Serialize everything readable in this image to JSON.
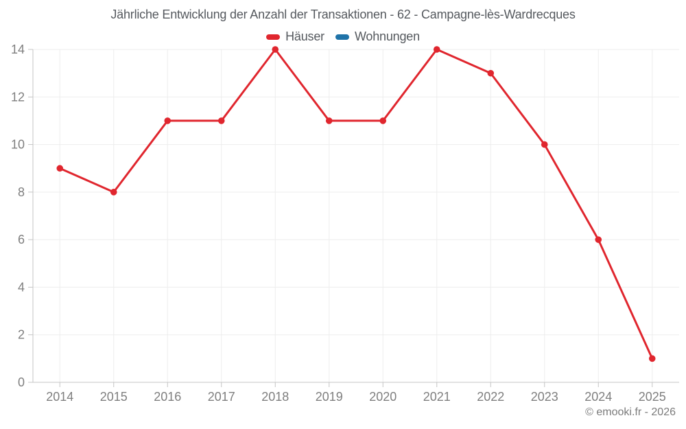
{
  "page": {
    "attribution": "© emooki.fr - 2026",
    "background": "#ffffff"
  },
  "colors": {
    "grid": "#ededed",
    "axis": "#c4c4c4",
    "tick_label": "#7e7e7e",
    "title_text": "#55595e",
    "attribution_text": "#7b7b7b"
  },
  "chart_data": {
    "type": "line",
    "title": "Jährliche Entwicklung der Anzahl der Transaktionen - 62 - Campagne-lès-Wardrecques",
    "categories": [
      "2014",
      "2015",
      "2016",
      "2017",
      "2018",
      "2019",
      "2020",
      "2021",
      "2022",
      "2023",
      "2024",
      "2025"
    ],
    "series": [
      {
        "name": "Häuser",
        "color": "#e0262e",
        "visible": true,
        "values": [
          9,
          8,
          11,
          11,
          14,
          11,
          11,
          14,
          13,
          10,
          6,
          1
        ]
      },
      {
        "name": "Wohnungen",
        "color": "#1f73a8",
        "visible": false,
        "values": []
      }
    ],
    "xlabel": "",
    "ylabel": "",
    "ylim": [
      0,
      14
    ],
    "yticks": [
      0,
      2,
      4,
      6,
      8,
      10,
      12,
      14
    ],
    "grid": true,
    "legend_position": "top",
    "marker": "circle"
  }
}
